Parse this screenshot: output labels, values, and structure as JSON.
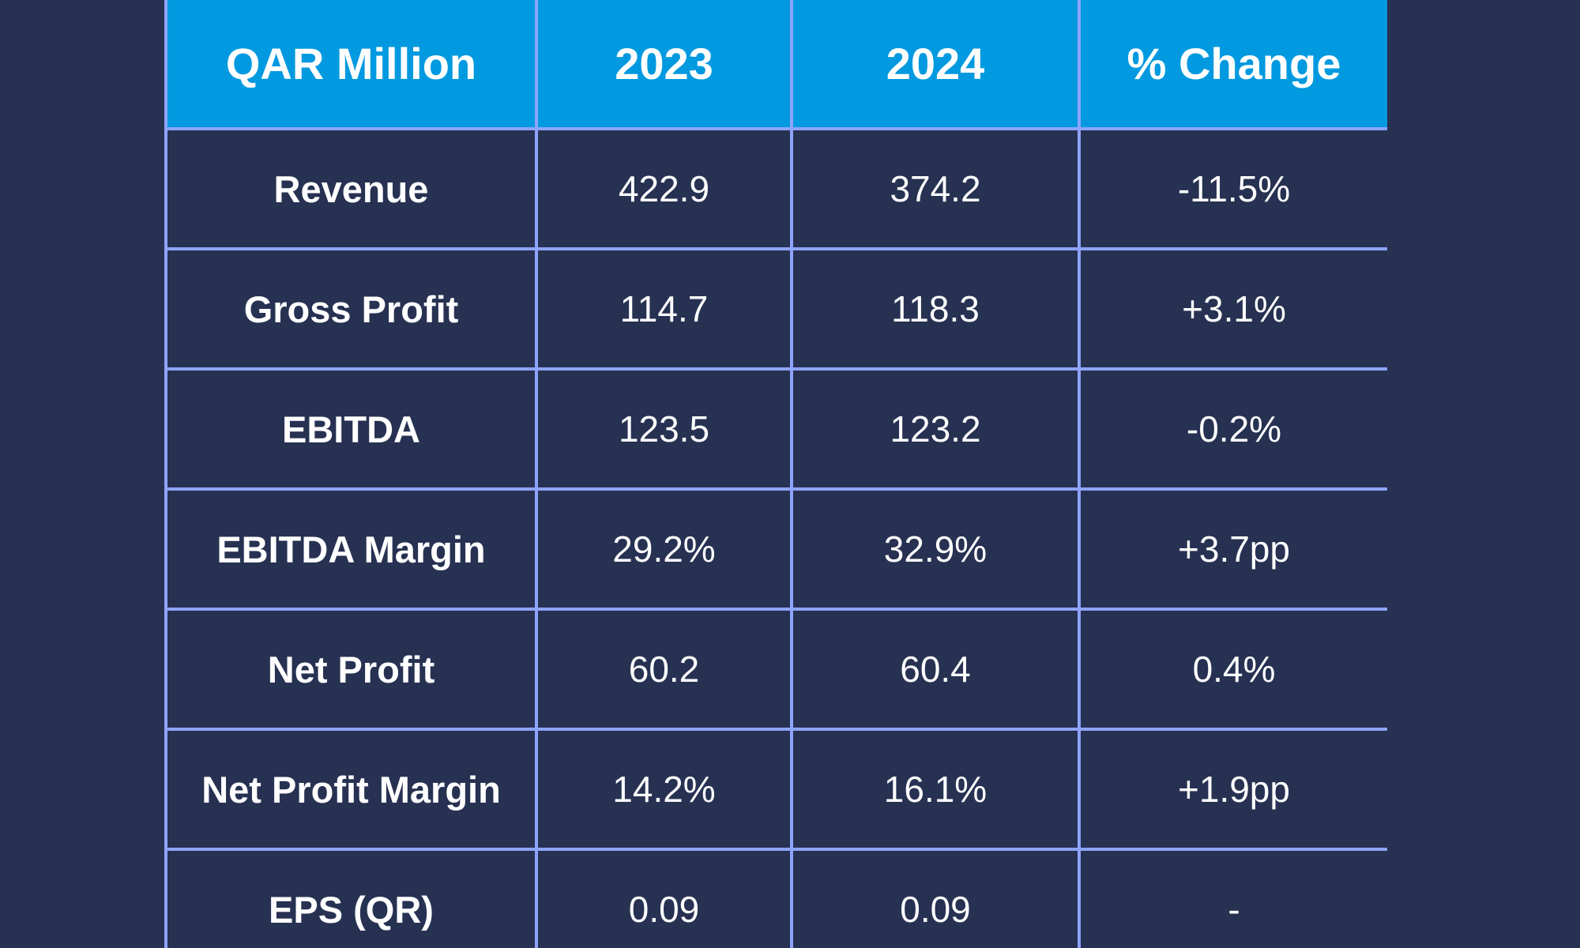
{
  "table": {
    "headers": [
      "QAR Million",
      "2023",
      "2024",
      "% Change"
    ],
    "rows": [
      {
        "label": "Revenue",
        "y2023": "422.9",
        "y2024": "374.2",
        "change": "-11.5%"
      },
      {
        "label": "Gross Profit",
        "y2023": "114.7",
        "y2024": "118.3",
        "change": "+3.1%"
      },
      {
        "label": "EBITDA",
        "y2023": "123.5",
        "y2024": "123.2",
        "change": "-0.2%"
      },
      {
        "label": "EBITDA Margin",
        "y2023": "29.2%",
        "y2024": "32.9%",
        "change": "+3.7pp"
      },
      {
        "label": "Net Profit",
        "y2023": "60.2",
        "y2024": "60.4",
        "change": "0.4%"
      },
      {
        "label": "Net Profit Margin",
        "y2023": "14.2%",
        "y2024": "16.1%",
        "change": "+1.9pp"
      },
      {
        "label": "EPS (QR)",
        "y2023": "0.09",
        "y2024": "0.09",
        "change": "-"
      }
    ]
  },
  "colors": {
    "background": "#273152",
    "header_bg": "#0199df",
    "grid_line": "#8ea4ff",
    "text": "#ffffff"
  }
}
